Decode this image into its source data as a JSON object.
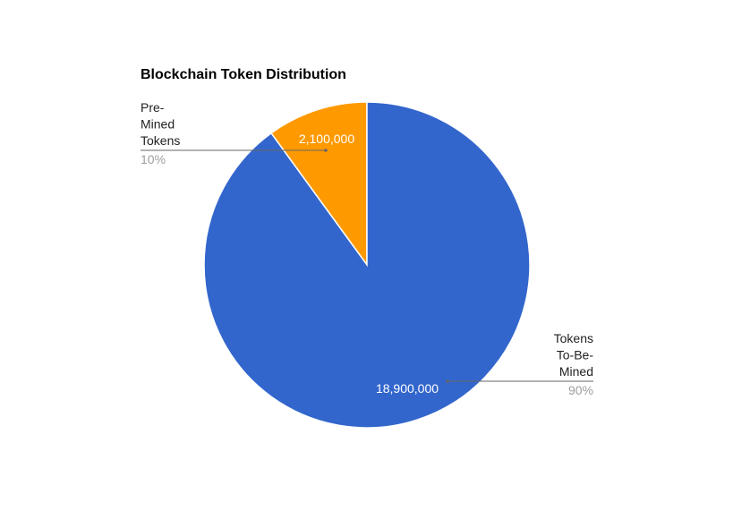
{
  "chart_data": {
    "type": "pie",
    "title": "Blockchain Token Distribution",
    "slices": [
      {
        "label_lines": [
          "Pre-",
          "Mined",
          "Tokens"
        ],
        "value": 2100000,
        "value_label": "2,100,000",
        "percent_label": "10%",
        "color": "#ff9900"
      },
      {
        "label_lines": [
          "Tokens",
          "To-Be-",
          "Mined"
        ],
        "value": 18900000,
        "value_label": "18,900,000",
        "percent_label": "90%",
        "color": "#3366cc"
      }
    ],
    "legend": "labeled"
  }
}
